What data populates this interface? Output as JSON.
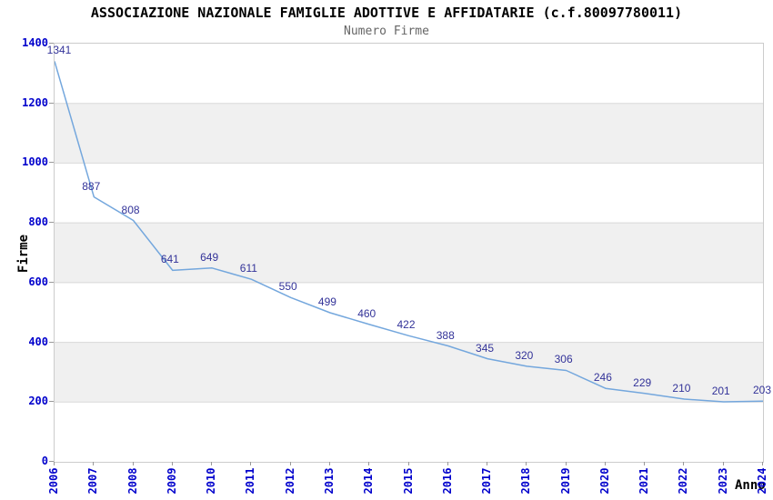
{
  "chart_data": {
    "type": "line",
    "title": "ASSOCIAZIONE NAZIONALE FAMIGLIE ADOTTIVE E AFFIDATARIE (c.f.80097780011)",
    "subtitle": "Numero Firme",
    "xlabel": "Anno",
    "ylabel": "Firme",
    "categories": [
      "2006",
      "2007",
      "2008",
      "2009",
      "2010",
      "2011",
      "2012",
      "2013",
      "2014",
      "2015",
      "2016",
      "2017",
      "2018",
      "2019",
      "2020",
      "2021",
      "2022",
      "2023",
      "2024"
    ],
    "values": [
      1341,
      887,
      808,
      641,
      649,
      611,
      550,
      499,
      460,
      422,
      388,
      345,
      320,
      306,
      246,
      229,
      210,
      201,
      203
    ],
    "ylim": [
      0,
      1400
    ],
    "y_ticks": [
      0,
      200,
      400,
      600,
      800,
      1000,
      1200,
      1400
    ],
    "grid": true,
    "band_ranges": [
      [
        1000,
        1200
      ],
      [
        600,
        800
      ],
      [
        200,
        400
      ]
    ],
    "legend": "none",
    "data_labels_visible": true,
    "colors": {
      "line": "#74a7dd",
      "band": "#f0f0f0",
      "grid": "#d8d8d8",
      "plot_border": "#cccccc",
      "axis_tick_text": "#0000cc",
      "point_label_text": "#333399",
      "title_text": "#000000",
      "subtitle_text": "#666666",
      "tick_mark": "#999999"
    }
  }
}
